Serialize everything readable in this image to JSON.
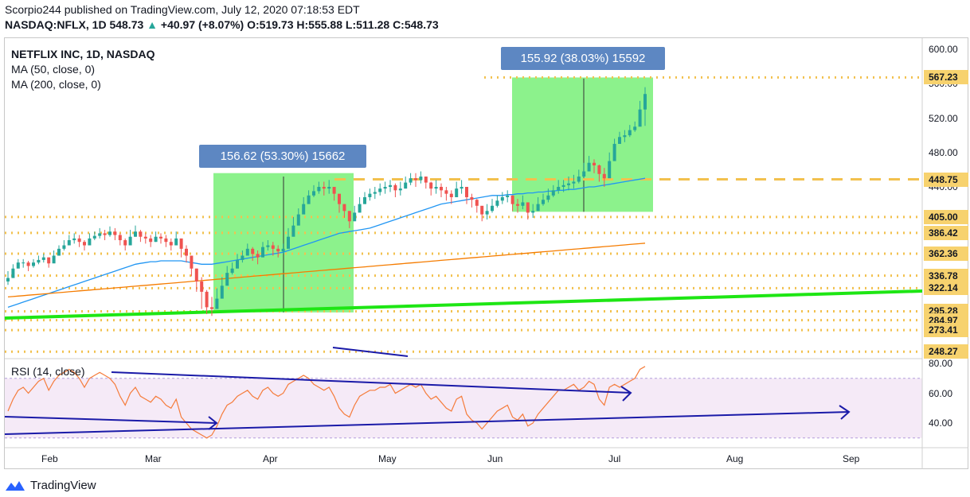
{
  "header": {
    "published": "Scorpio244 published on TradingView.com, July 12, 2020 07:18:53 EDT",
    "symbol": "NASDAQ:NFLX, 1D",
    "price": "548.73",
    "change_arrow": "▲",
    "change": "+40.97 (+8.07%)",
    "open_label": "O:",
    "open": "519.73",
    "high_label": "H:",
    "high": "555.88",
    "low_label": "L:",
    "low": "511.28",
    "close_label": "C:",
    "close": "548.73"
  },
  "legend": {
    "title": "NETFLIX INC, 1D, NASDAQ",
    "ma50": "MA (50, close, 0)",
    "ma200": "MA (200, close, 0)",
    "rsi": "RSI (14, close)"
  },
  "measures": [
    {
      "label": "156.62 (53.30%) 15662"
    },
    {
      "label": "155.92 (38.03%) 15592"
    }
  ],
  "brand": "TradingView",
  "colors": {
    "up": "#26a69a",
    "down": "#ef5350",
    "ma50": "#2196f3",
    "ma200": "#f57c00",
    "trend": "#1ee614",
    "level": "#f2c14e",
    "measure": "#5d87c2",
    "rsi": "#f57c3b",
    "blue_line": "#1a1aa8"
  },
  "chart_data": {
    "type": "candlestick",
    "x_tick_labels": [
      "Feb",
      "Mar",
      "Apr",
      "May",
      "Jun",
      "Jul",
      "Aug",
      "Sep"
    ],
    "y_price_ticks": [
      600,
      560,
      520,
      480,
      440
    ],
    "y_rsi_ticks": [
      80,
      60,
      40
    ],
    "price_levels": [
      {
        "label": "567.23",
        "value": 567.23,
        "style": "dotted"
      },
      {
        "label": "448.75",
        "value": 448.75,
        "style": "dashed"
      },
      {
        "label": "405.00",
        "value": 405.0,
        "style": "dotted"
      },
      {
        "label": "386.42",
        "value": 386.42,
        "style": "dotted"
      },
      {
        "label": "362.36",
        "value": 362.36,
        "style": "dotted"
      },
      {
        "label": "336.78",
        "value": 336.78,
        "style": "dotted"
      },
      {
        "label": "322.14",
        "value": 322.14,
        "style": "dotted"
      },
      {
        "label": "295.28",
        "value": 295.28,
        "style": "dotted"
      },
      {
        "label": "284.97",
        "value": 284.97,
        "style": "dotted"
      },
      {
        "label": "273.41",
        "value": 273.41,
        "style": "dotted"
      },
      {
        "label": "248.27",
        "value": 248.27,
        "style": "dotted"
      }
    ],
    "closes": [
      334,
      345,
      352,
      352,
      348,
      352,
      355,
      358,
      351,
      360,
      368,
      372,
      378,
      380,
      376,
      372,
      380,
      383,
      386,
      384,
      388,
      384,
      378,
      372,
      382,
      388,
      382,
      380,
      376,
      382,
      380,
      376,
      372,
      380,
      368,
      360,
      345,
      330,
      318,
      300,
      298,
      310,
      325,
      340,
      345,
      355,
      360,
      368,
      362,
      358,
      370,
      372,
      368,
      365,
      368,
      382,
      395,
      408,
      420,
      430,
      435,
      440,
      438,
      440,
      432,
      420,
      412,
      400,
      410,
      420,
      428,
      432,
      434,
      438,
      440,
      442,
      436,
      438,
      445,
      450,
      448,
      452,
      445,
      438,
      440,
      436,
      432,
      428,
      438,
      440,
      428,
      425,
      418,
      408,
      412,
      418,
      424,
      428,
      430,
      420,
      418,
      422,
      410,
      412,
      420,
      425,
      430,
      436,
      440,
      442,
      444,
      446,
      452,
      458,
      468,
      465,
      455,
      450,
      470,
      490,
      498,
      500,
      506,
      510,
      530,
      548
    ],
    "highs": [
      342,
      350,
      356,
      356,
      354,
      356,
      360,
      362,
      358,
      366,
      372,
      378,
      384,
      386,
      384,
      378,
      386,
      388,
      392,
      390,
      394,
      392,
      386,
      380,
      390,
      395,
      390,
      386,
      384,
      388,
      386,
      384,
      380,
      388,
      378,
      372,
      360,
      345,
      335,
      320,
      312,
      322,
      335,
      348,
      352,
      362,
      366,
      374,
      370,
      366,
      376,
      378,
      376,
      372,
      374,
      392,
      405,
      415,
      428,
      436,
      442,
      446,
      446,
      448,
      440,
      428,
      420,
      410,
      418,
      428,
      434,
      438,
      440,
      444,
      446,
      448,
      444,
      446,
      452,
      456,
      456,
      458,
      452,
      446,
      448,
      444,
      440,
      436,
      446,
      448,
      436,
      432,
      426,
      416,
      420,
      426,
      430,
      434,
      436,
      428,
      426,
      430,
      420,
      420,
      428,
      432,
      438,
      442,
      448,
      448,
      452,
      454,
      460,
      468,
      476,
      472,
      466,
      462,
      480,
      496,
      504,
      506,
      512,
      516,
      540,
      556
    ],
    "lows": [
      326,
      338,
      346,
      346,
      342,
      346,
      350,
      352,
      346,
      354,
      362,
      366,
      372,
      374,
      370,
      366,
      374,
      378,
      380,
      378,
      382,
      378,
      372,
      366,
      374,
      382,
      376,
      374,
      370,
      376,
      374,
      370,
      366,
      372,
      358,
      352,
      336,
      318,
      298,
      292,
      290,
      300,
      315,
      330,
      338,
      348,
      352,
      360,
      354,
      350,
      362,
      366,
      360,
      358,
      362,
      374,
      386,
      400,
      412,
      422,
      428,
      432,
      430,
      432,
      424,
      410,
      404,
      392,
      400,
      412,
      420,
      424,
      426,
      430,
      432,
      434,
      428,
      430,
      438,
      442,
      440,
      444,
      438,
      430,
      432,
      428,
      424,
      420,
      430,
      432,
      420,
      416,
      410,
      400,
      402,
      410,
      416,
      420,
      422,
      412,
      410,
      414,
      402,
      404,
      412,
      418,
      422,
      428,
      432,
      434,
      436,
      438,
      444,
      450,
      458,
      456,
      446,
      440,
      460,
      482,
      490,
      492,
      498,
      504,
      516,
      511
    ],
    "ma50": [
      300,
      302,
      304,
      306,
      308,
      310,
      312,
      314,
      316,
      318,
      320,
      322,
      324,
      326,
      328,
      330,
      332,
      334,
      336,
      338,
      340,
      342,
      344,
      346,
      348,
      350,
      351,
      352,
      353,
      353,
      354,
      354,
      354,
      354,
      354,
      353,
      352,
      351,
      350,
      350,
      350,
      351,
      352,
      353,
      354,
      355,
      356,
      357,
      358,
      359,
      360,
      361,
      362,
      363,
      364,
      366,
      368,
      370,
      372,
      374,
      376,
      378,
      380,
      382,
      384,
      386,
      387,
      388,
      389,
      390,
      391,
      392,
      394,
      396,
      398,
      400,
      402,
      404,
      406,
      408,
      410,
      412,
      414,
      416,
      418,
      420,
      421,
      422,
      423,
      424,
      425,
      426,
      427,
      428,
      429,
      430,
      430,
      430,
      431,
      431,
      432,
      432,
      433,
      433,
      434,
      434,
      435,
      435,
      436,
      436,
      437,
      437,
      438,
      439,
      440,
      440,
      441,
      442,
      443,
      444,
      445,
      446,
      447,
      448,
      449,
      450
    ],
    "ma200": [
      312,
      312.5,
      313,
      313.5,
      314,
      314.5,
      315,
      315.5,
      316,
      316.5,
      317,
      317.5,
      318,
      318.5,
      319,
      319.5,
      320,
      320.5,
      321,
      321.5,
      322,
      322.5,
      323,
      323.5,
      324,
      324.5,
      325,
      325.5,
      326,
      326.5,
      327,
      327.5,
      328,
      328.5,
      329,
      329.5,
      330,
      330.5,
      331,
      331.5,
      332,
      332.5,
      333,
      333.5,
      334,
      334.5,
      335,
      335.5,
      336,
      336.5,
      337,
      337.5,
      338,
      338.5,
      339,
      339.5,
      340,
      340.5,
      341,
      341.5,
      342,
      342.5,
      343,
      343.5,
      344,
      344.5,
      345,
      345.5,
      346,
      346.5,
      347,
      347.5,
      348,
      348.5,
      349,
      349.5,
      350,
      350.5,
      351,
      351.5,
      352,
      352.5,
      353,
      353.5,
      354,
      354.5,
      355,
      355.5,
      356,
      356.5,
      357,
      357.5,
      358,
      358.5,
      359,
      359.5,
      360,
      360.5,
      361,
      361.5,
      362,
      362.5,
      363,
      363.5,
      364,
      364.5,
      365,
      365.5,
      366,
      366.5,
      367,
      367.5,
      368,
      368.5,
      369,
      369.5,
      370,
      370.5,
      371,
      371.5,
      372,
      372.5,
      373,
      373.5,
      374,
      374.5
    ],
    "rsi": [
      48,
      56,
      62,
      64,
      60,
      64,
      68,
      70,
      62,
      68,
      72,
      74,
      76,
      74,
      70,
      64,
      70,
      72,
      74,
      72,
      70,
      66,
      58,
      52,
      60,
      64,
      58,
      56,
      54,
      58,
      56,
      52,
      50,
      56,
      44,
      40,
      36,
      34,
      32,
      30,
      32,
      38,
      46,
      52,
      54,
      58,
      60,
      62,
      58,
      56,
      62,
      64,
      60,
      58,
      60,
      66,
      68,
      70,
      72,
      70,
      66,
      64,
      62,
      64,
      58,
      50,
      46,
      44,
      52,
      58,
      60,
      62,
      62,
      64,
      64,
      66,
      60,
      62,
      64,
      66,
      64,
      66,
      60,
      56,
      58,
      54,
      50,
      48,
      56,
      58,
      46,
      42,
      40,
      36,
      40,
      44,
      48,
      50,
      52,
      44,
      42,
      46,
      38,
      40,
      46,
      50,
      54,
      58,
      62,
      62,
      64,
      66,
      62,
      64,
      68,
      66,
      56,
      52,
      64,
      66,
      64,
      66,
      68,
      70,
      76,
      78
    ]
  }
}
